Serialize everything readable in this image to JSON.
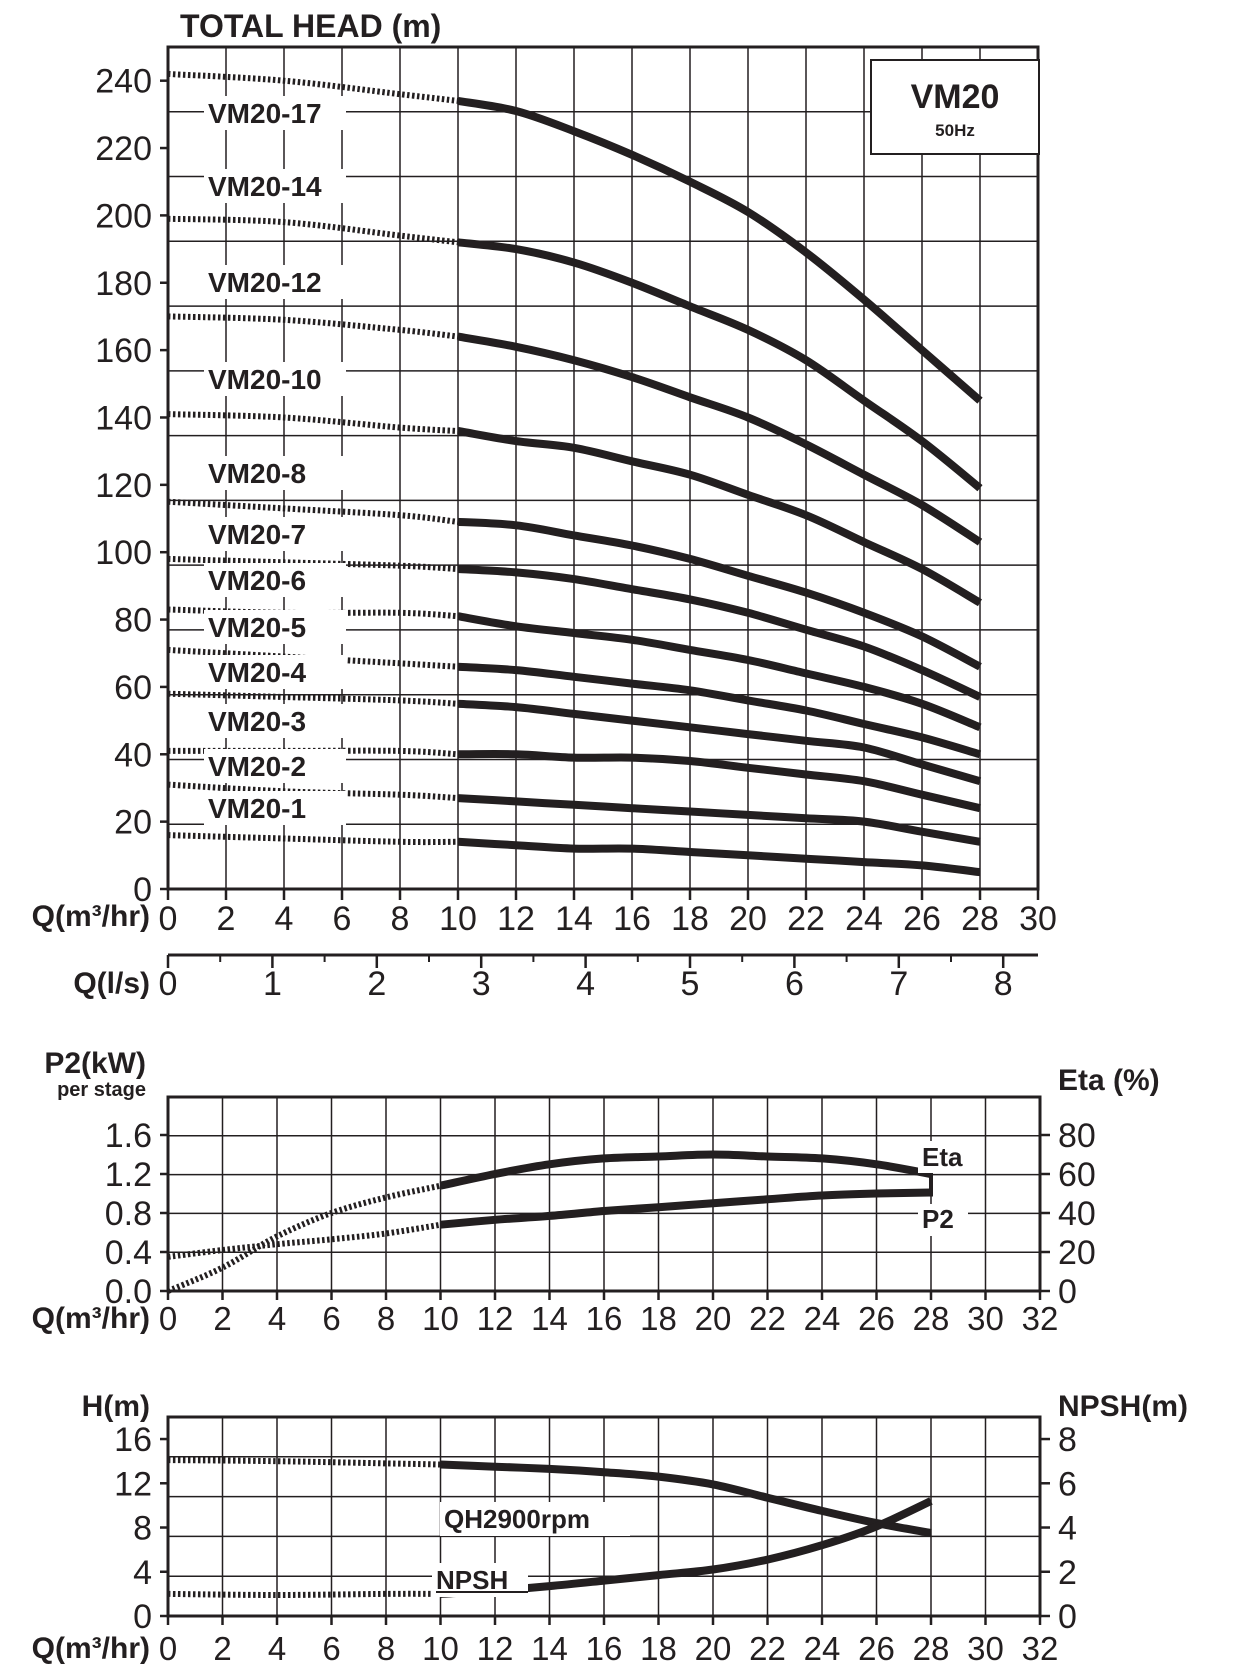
{
  "main": {
    "title": "TOTAL HEAD (m)",
    "model": "VM20",
    "frequency": "50Hz",
    "x_label": "Q(m³/hr)",
    "x2_label": "Q(l/s)",
    "x_ticks": [
      "0",
      "2",
      "4",
      "6",
      "8",
      "10",
      "12",
      "14",
      "16",
      "18",
      "20",
      "22",
      "24",
      "26",
      "28",
      "30"
    ],
    "x2_ticks": [
      "0",
      "1",
      "2",
      "3",
      "4",
      "5",
      "6",
      "7",
      "8"
    ],
    "y_ticks": [
      "0",
      "20",
      "40",
      "60",
      "80",
      "100",
      "120",
      "140",
      "160",
      "180",
      "200",
      "220",
      "240"
    ]
  },
  "power": {
    "y_label": "P2(kW)",
    "y_sublabel": "per stage",
    "y2_label": "Eta (%)",
    "x_label": "Q(m³/hr)",
    "x_ticks": [
      "0",
      "2",
      "4",
      "6",
      "8",
      "10",
      "12",
      "14",
      "16",
      "18",
      "20",
      "22",
      "24",
      "26",
      "28",
      "30",
      "32"
    ],
    "y_ticks": [
      "0.0",
      "0.4",
      "0.8",
      "1.2",
      "1.6"
    ],
    "y2_ticks": [
      "0",
      "20",
      "40",
      "60",
      "80"
    ]
  },
  "npsh": {
    "y_label": "H(m)",
    "y2_label": "NPSH(m)",
    "x_label": "Q(m³/hr)",
    "x_ticks": [
      "0",
      "2",
      "4",
      "6",
      "8",
      "10",
      "12",
      "14",
      "16",
      "18",
      "20",
      "22",
      "24",
      "26",
      "28",
      "30",
      "32"
    ],
    "y_ticks": [
      "0",
      "4",
      "8",
      "12",
      "16"
    ],
    "y2_ticks": [
      "0",
      "2",
      "4",
      "6",
      "8"
    ]
  },
  "colors": {
    "line": "#231f20",
    "background": "#ffffff"
  },
  "chart_data": [
    {
      "type": "line",
      "title": "TOTAL HEAD (m)",
      "xlabel": "Q(m³/hr)",
      "ylabel": "TOTAL HEAD (m)",
      "xlim": [
        0,
        30
      ],
      "ylim": [
        0,
        250
      ],
      "grid": true,
      "dotted_below_x": 10,
      "series": [
        {
          "name": "VM20-17",
          "x": [
            0,
            4,
            8,
            10,
            12,
            14,
            16,
            18,
            20,
            22,
            24,
            26,
            28
          ],
          "y": [
            242,
            240,
            236,
            234,
            231,
            225,
            218,
            210,
            201,
            189,
            175,
            160,
            145
          ]
        },
        {
          "name": "VM20-14",
          "x": [
            0,
            4,
            8,
            10,
            12,
            14,
            16,
            18,
            20,
            22,
            24,
            26,
            28
          ],
          "y": [
            199,
            198,
            194,
            192,
            190,
            186,
            180,
            173,
            166,
            157,
            145,
            133,
            119
          ]
        },
        {
          "name": "VM20-12",
          "x": [
            0,
            4,
            8,
            10,
            12,
            14,
            16,
            18,
            20,
            22,
            24,
            26,
            28
          ],
          "y": [
            170,
            169,
            166,
            164,
            161,
            157,
            152,
            146,
            140,
            132,
            123,
            114,
            103
          ]
        },
        {
          "name": "VM20-10",
          "x": [
            0,
            4,
            8,
            10,
            12,
            14,
            16,
            18,
            20,
            22,
            24,
            26,
            28
          ],
          "y": [
            141,
            140,
            137,
            136,
            133,
            131,
            127,
            123,
            117,
            111,
            103,
            95,
            85
          ]
        },
        {
          "name": "VM20-8",
          "x": [
            0,
            4,
            8,
            10,
            12,
            14,
            16,
            18,
            20,
            22,
            24,
            26,
            28
          ],
          "y": [
            115,
            113,
            111,
            109,
            108,
            105,
            102,
            98,
            93,
            88,
            82,
            75,
            66
          ]
        },
        {
          "name": "VM20-7",
          "x": [
            0,
            4,
            8,
            10,
            12,
            14,
            16,
            18,
            20,
            22,
            24,
            26,
            28
          ],
          "y": [
            98,
            97,
            96,
            95,
            94,
            92,
            89,
            86,
            82,
            77,
            72,
            65,
            57
          ]
        },
        {
          "name": "VM20-6",
          "x": [
            0,
            4,
            8,
            10,
            12,
            14,
            16,
            18,
            20,
            22,
            24,
            26,
            28
          ],
          "y": [
            83,
            82,
            82,
            81,
            78,
            76,
            74,
            71,
            68,
            64,
            60,
            55,
            48
          ]
        },
        {
          "name": "VM20-5",
          "x": [
            0,
            4,
            8,
            10,
            12,
            14,
            16,
            18,
            20,
            22,
            24,
            26,
            28
          ],
          "y": [
            71,
            69,
            67,
            66,
            65,
            63,
            61,
            59,
            56,
            53,
            49,
            45,
            40
          ]
        },
        {
          "name": "VM20-4",
          "x": [
            0,
            4,
            8,
            10,
            12,
            14,
            16,
            18,
            20,
            22,
            24,
            26,
            28
          ],
          "y": [
            58,
            57,
            56,
            55,
            54,
            52,
            50,
            48,
            46,
            44,
            42,
            37,
            32
          ]
        },
        {
          "name": "VM20-3",
          "x": [
            0,
            4,
            8,
            10,
            12,
            14,
            16,
            18,
            20,
            22,
            24,
            26,
            28
          ],
          "y": [
            41,
            41,
            41,
            40,
            40,
            39,
            39,
            38,
            36,
            34,
            32,
            28,
            24
          ]
        },
        {
          "name": "VM20-2",
          "x": [
            0,
            4,
            8,
            10,
            12,
            14,
            16,
            18,
            20,
            22,
            24,
            26,
            28
          ],
          "y": [
            31,
            29,
            28,
            27,
            26,
            25,
            24,
            23,
            22,
            21,
            20,
            17,
            14
          ]
        },
        {
          "name": "VM20-1",
          "x": [
            0,
            4,
            8,
            10,
            12,
            14,
            16,
            18,
            20,
            22,
            24,
            26,
            28
          ],
          "y": [
            16,
            15,
            14,
            14,
            13,
            12,
            12,
            11,
            10,
            9,
            8,
            7,
            5
          ]
        }
      ]
    },
    {
      "type": "line",
      "xlabel": "Q(m³/hr)",
      "ylabel": "P2(kW) per stage",
      "y2label": "Eta (%)",
      "xlim": [
        0,
        32
      ],
      "ylim": [
        0,
        1.6
      ],
      "y2lim": [
        0,
        80
      ],
      "grid": true,
      "dotted_below_x": 10,
      "series": [
        {
          "name": "Eta",
          "axis": "right",
          "x": [
            0,
            2,
            4,
            6,
            8,
            10,
            12,
            14,
            16,
            18,
            20,
            22,
            24,
            26,
            28
          ],
          "y": [
            0,
            12,
            28,
            40,
            48,
            54,
            60,
            65,
            68,
            69,
            70,
            69,
            68,
            65,
            60
          ]
        },
        {
          "name": "P2",
          "axis": "left",
          "x": [
            0,
            2,
            4,
            6,
            8,
            10,
            12,
            14,
            16,
            18,
            20,
            22,
            24,
            26,
            28
          ],
          "y": [
            0.35,
            0.42,
            0.48,
            0.53,
            0.59,
            0.68,
            0.73,
            0.77,
            0.82,
            0.86,
            0.9,
            0.94,
            0.98,
            1.0,
            1.01
          ]
        }
      ]
    },
    {
      "type": "line",
      "xlabel": "Q(m³/hr)",
      "ylabel": "H(m)",
      "y2label": "NPSH(m)",
      "xlim": [
        0,
        32
      ],
      "ylim": [
        0,
        18
      ],
      "y2lim": [
        0,
        9
      ],
      "grid": true,
      "dotted_below_x": 10,
      "series": [
        {
          "name": "QH2900rpm",
          "axis": "left",
          "x": [
            0,
            4,
            8,
            10,
            12,
            14,
            16,
            18,
            20,
            22,
            24,
            26,
            28
          ],
          "y": [
            14.1,
            14.0,
            13.8,
            13.7,
            13.5,
            13.3,
            13.0,
            12.6,
            11.9,
            10.7,
            9.5,
            8.4,
            7.5
          ]
        },
        {
          "name": "NPSH",
          "axis": "right",
          "x": [
            0,
            4,
            8,
            10,
            12,
            14,
            16,
            18,
            20,
            22,
            24,
            26,
            28
          ],
          "y": [
            1.0,
            0.95,
            1.0,
            1.0,
            1.15,
            1.35,
            1.6,
            1.85,
            2.1,
            2.55,
            3.2,
            4.05,
            5.2
          ]
        }
      ]
    }
  ]
}
